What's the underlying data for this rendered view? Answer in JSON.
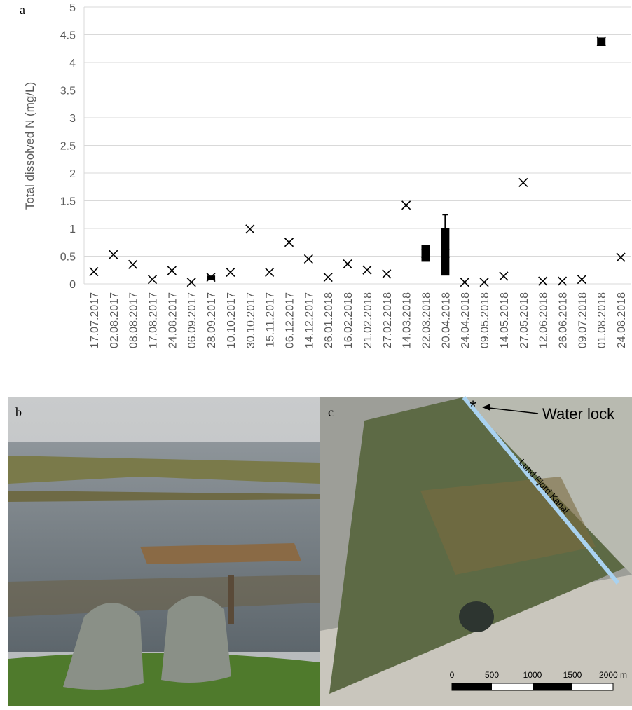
{
  "chart_data": {
    "type": "box",
    "panel_label": "a",
    "y_label": "Total dissolved N (mg/L)",
    "categories": [
      "17.07.2017",
      "02.08.2017",
      "08.08.2017",
      "17.08.2017",
      "24.08.2017",
      "06.09.2017",
      "28.09.2017",
      "10.10.2017",
      "30.10.2017",
      "15.11.2017",
      "06.12.2017",
      "14.12.2017",
      "26.01.2018",
      "16.02.2018",
      "21.02.2018",
      "27.02.2018",
      "14.03.2018",
      "22.03.2018",
      "20.04.2018",
      "24.04.2018",
      "09.05.2018",
      "14.05.2018",
      "27.05.2018",
      "12.06.2018",
      "26.06.2018",
      "09.07.2018",
      "01.08.2018",
      "24.08.2018"
    ],
    "values": [
      0.22,
      0.53,
      0.35,
      0.08,
      0.24,
      0.03,
      0.12,
      0.21,
      0.99,
      0.21,
      0.75,
      0.45,
      0.12,
      0.36,
      0.25,
      0.18,
      1.42,
      0.55,
      0.55,
      0.03,
      0.03,
      0.14,
      1.83,
      0.05,
      0.05,
      0.08,
      4.38,
      0.48
    ],
    "q1": [
      null,
      null,
      null,
      null,
      null,
      null,
      0.07,
      null,
      null,
      null,
      null,
      null,
      null,
      null,
      null,
      null,
      null,
      0.4,
      0.15,
      null,
      null,
      null,
      null,
      null,
      null,
      null,
      4.3,
      null
    ],
    "q3": [
      null,
      null,
      null,
      null,
      null,
      null,
      0.15,
      null,
      null,
      null,
      null,
      null,
      null,
      null,
      null,
      null,
      null,
      0.7,
      1.0,
      null,
      null,
      null,
      null,
      null,
      null,
      null,
      4.45,
      null
    ],
    "whisker_high": [
      null,
      null,
      null,
      null,
      null,
      null,
      null,
      null,
      null,
      null,
      null,
      null,
      null,
      null,
      null,
      null,
      null,
      null,
      1.25,
      null,
      null,
      null,
      null,
      null,
      null,
      null,
      null,
      null
    ],
    "color": "#000000",
    "ylim": [
      0,
      5
    ],
    "yticks": [
      0,
      0.5,
      1,
      1.5,
      2,
      2.5,
      3,
      3.5,
      4,
      4.5,
      5
    ],
    "grid": true
  },
  "photo_panel": {
    "label": "b"
  },
  "map_panel": {
    "label": "c",
    "marker": "Water lock",
    "canal": "Lund Fjord Kanal",
    "scale_labels": [
      "0",
      "500",
      "1000",
      "1500",
      "2000 m"
    ]
  }
}
